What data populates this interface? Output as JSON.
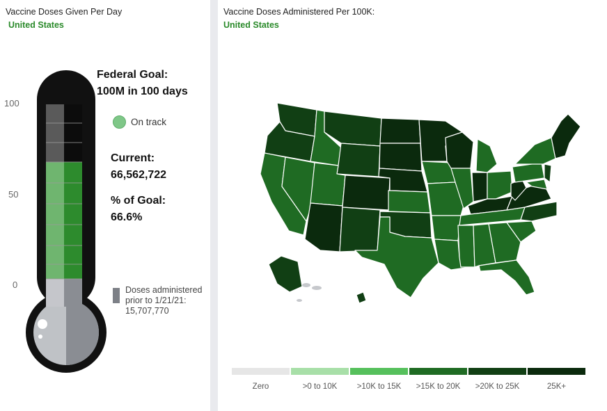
{
  "left_panel": {
    "title": "Vaccine Doses Given Per Day",
    "subtitle": "United States",
    "axis_ticks": [
      "100",
      "50",
      "0"
    ],
    "goal_line1": "Federal Goal:",
    "goal_line2": "100M in 100 days",
    "status_label": "On track",
    "current_label": "Current:",
    "current_value": "66,562,722",
    "percent_label": "% of Goal:",
    "percent_value": "66.6%",
    "progress_fraction": 0.666,
    "legend_text": "Doses administered prior to 1/21/21: 15,707,770",
    "colors": {
      "filled": "#2d8b2d",
      "empty": "#222222",
      "prior": "#8a8d93",
      "bulb": "#bfc2c6"
    }
  },
  "right_panel": {
    "title": "Vaccine Doses Administered Per 100K:",
    "subtitle": "United States",
    "legend": [
      {
        "label": "Zero",
        "color": "#e6e6e6"
      },
      {
        "label": ">0 to 10K",
        "color": "#a8dfa8"
      },
      {
        "label": ">10K to 15K",
        "color": "#56c05c"
      },
      {
        "label": ">15K to 20K",
        "color": "#1f6b23"
      },
      {
        "label": ">20K to 25K",
        "color": "#113f14"
      },
      {
        "label": "25K+",
        "color": "#0b2a0d"
      }
    ]
  }
}
